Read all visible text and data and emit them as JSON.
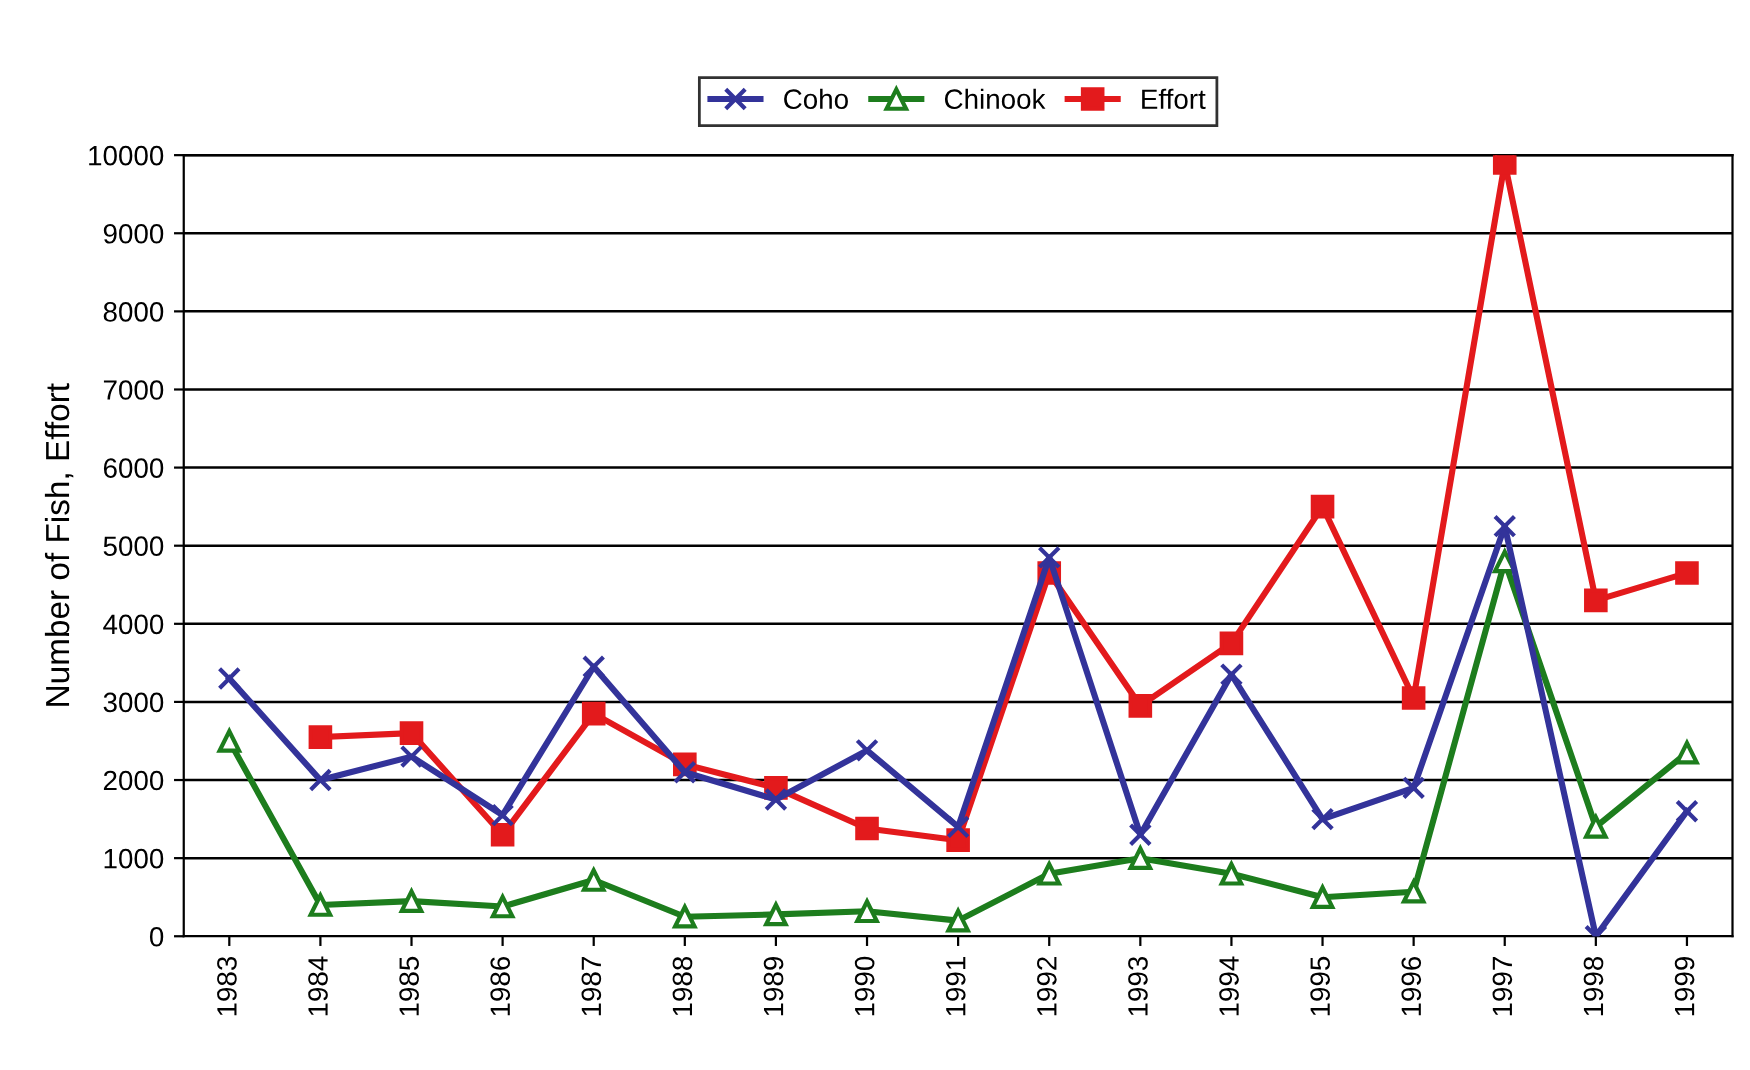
{
  "chart_data": {
    "type": "line",
    "ylabel": "Number of Fish, Effort",
    "categories": [
      "1983",
      "1984",
      "1985",
      "1986",
      "1987",
      "1988",
      "1989",
      "1990",
      "1991",
      "1992",
      "1993",
      "1994",
      "1995",
      "1996",
      "1997",
      "1998",
      "1999"
    ],
    "ylim": [
      0,
      10000
    ],
    "yticks": [
      0,
      1000,
      2000,
      3000,
      4000,
      5000,
      6000,
      7000,
      8000,
      9000,
      10000
    ],
    "grid": "y",
    "legend": "top",
    "series": [
      {
        "name": "Coho",
        "color": "#33339a",
        "marker": "cross",
        "values": [
          3300,
          2000,
          2300,
          1550,
          3450,
          2100,
          1750,
          2380,
          1400,
          4850,
          1300,
          3350,
          1500,
          1900,
          5250,
          0,
          1600
        ]
      },
      {
        "name": "Chinook",
        "color": "#1d7d1d",
        "marker": "triangle",
        "values": [
          2500,
          400,
          450,
          380,
          720,
          250,
          280,
          320,
          200,
          800,
          1000,
          800,
          500,
          570,
          4800,
          1400,
          2350
        ]
      },
      {
        "name": "Effort",
        "color": "#e31a1c",
        "marker": "square",
        "values": [
          null,
          2550,
          2600,
          1300,
          2850,
          2200,
          1900,
          1380,
          1230,
          4650,
          2950,
          3750,
          5500,
          3050,
          9900,
          4300,
          4650
        ]
      }
    ]
  }
}
